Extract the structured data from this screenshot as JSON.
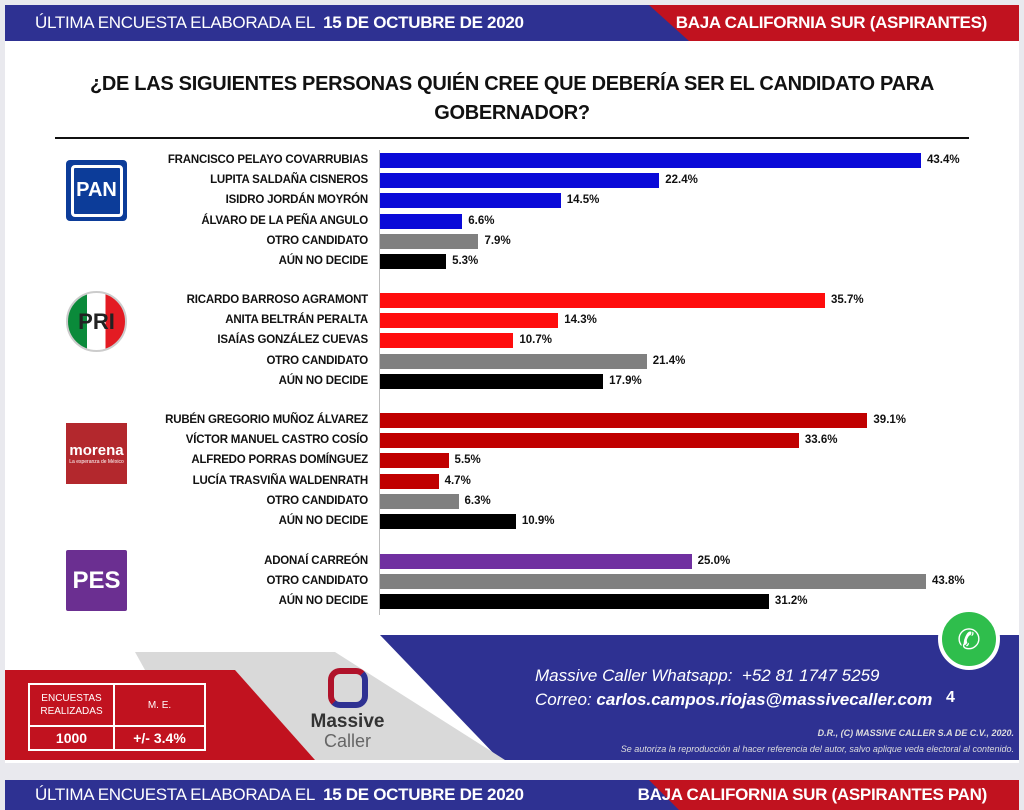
{
  "header": {
    "date_prefix": "ÚLTIMA ENCUESTA ELABORADA EL",
    "date": "15 DE OCTUBRE DE 2020",
    "region": "BAJA CALIFORNIA SUR (ASPIRANTES)"
  },
  "footer_bar": {
    "date_prefix": "ÚLTIMA ENCUESTA ELABORADA EL",
    "date": "15 DE OCTUBRE DE 2020",
    "region": "BAJA CALIFORNIA SUR (ASPIRANTES PAN)"
  },
  "logos": {
    "pan": "PAN",
    "pri": "PRI",
    "morena": "morena",
    "morena_tagline": "La esperanza de México",
    "pes": "PES"
  },
  "colors": {
    "pan": "#0a0ad8",
    "pri": "#ff0d0d",
    "morena": "#c00000",
    "pes": "#7030a0",
    "otro": "#808080",
    "no_decide": "#000000"
  },
  "chart_data": {
    "type": "bar",
    "orientation": "horizontal",
    "title": "¿DE LAS SIGUIENTES PERSONAS QUIÉN CREE QUE DEBERÍA SER EL CANDIDATO PARA GOBERNADOR?",
    "unit": "%",
    "xlim": [
      0,
      45
    ],
    "groups": [
      {
        "party": "pan",
        "items": [
          {
            "label": "FRANCISCO PELAYO COVARRUBIAS",
            "value": 43.4,
            "display": "43.4%",
            "color": "pan"
          },
          {
            "label": "LUPITA SALDAÑA CISNEROS",
            "value": 22.4,
            "display": "22.4%",
            "color": "pan"
          },
          {
            "label": "ISIDRO JORDÁN MOYRÓN",
            "value": 14.5,
            "display": "14.5%",
            "color": "pan"
          },
          {
            "label": "ÁLVARO DE LA PEÑA ANGULO",
            "value": 6.6,
            "display": "6.6%",
            "color": "pan"
          },
          {
            "label": "OTRO CANDIDATO",
            "value": 7.9,
            "display": "7.9%",
            "color": "otro"
          },
          {
            "label": "AÚN NO DECIDE",
            "value": 5.3,
            "display": "5.3%",
            "color": "no_decide"
          }
        ]
      },
      {
        "party": "pri",
        "items": [
          {
            "label": "RICARDO BARROSO AGRAMONT",
            "value": 35.7,
            "display": "35.7%",
            "color": "pri"
          },
          {
            "label": "ANITA BELTRÁN PERALTA",
            "value": 14.3,
            "display": "14.3%",
            "color": "pri"
          },
          {
            "label": "ISAÍAS GONZÁLEZ CUEVAS",
            "value": 10.7,
            "display": "10.7%",
            "color": "pri"
          },
          {
            "label": "OTRO CANDIDATO",
            "value": 21.4,
            "display": "21.4%",
            "color": "otro"
          },
          {
            "label": "AÚN NO DECIDE",
            "value": 17.9,
            "display": "17.9%",
            "color": "no_decide"
          }
        ]
      },
      {
        "party": "morena",
        "items": [
          {
            "label": "RUBÉN GREGORIO MUÑOZ ÁLVAREZ",
            "value": 39.1,
            "display": "39.1%",
            "color": "morena"
          },
          {
            "label": "VÍCTOR MANUEL CASTRO COSÍO",
            "value": 33.6,
            "display": "33.6%",
            "color": "morena"
          },
          {
            "label": "ALFREDO PORRAS DOMÍNGUEZ",
            "value": 5.5,
            "display": "5.5%",
            "color": "morena"
          },
          {
            "label": "LUCÍA TRASVIÑA WALDENRATH",
            "value": 4.7,
            "display": "4.7%",
            "color": "morena"
          },
          {
            "label": "OTRO CANDIDATO",
            "value": 6.3,
            "display": "6.3%",
            "color": "otro"
          },
          {
            "label": "AÚN NO DECIDE",
            "value": 10.9,
            "display": "10.9%",
            "color": "no_decide"
          }
        ]
      },
      {
        "party": "pes",
        "items": [
          {
            "label": "ADONAÍ CARREÓN",
            "value": 25.0,
            "display": "25.0%",
            "color": "pes"
          },
          {
            "label": "OTRO CANDIDATO",
            "value": 43.8,
            "display": "43.8%",
            "color": "otro"
          },
          {
            "label": "AÚN NO DECIDE",
            "value": 31.2,
            "display": "31.2%",
            "color": "no_decide"
          }
        ]
      }
    ]
  },
  "survey": {
    "h1": "ENCUESTAS REALIZADAS",
    "h2": "M. E.",
    "count": "1000",
    "margin": "+/- 3.4%"
  },
  "brand": {
    "name1": "Massive",
    "name2": "Caller"
  },
  "contact": {
    "whatsapp_label": "Massive Caller Whatsapp:",
    "whatsapp": "+52 81 1747 5259",
    "email_label": "Correo:",
    "email": "carlos.campos.riojas@massivecaller.com",
    "page": "4"
  },
  "copyright": {
    "line1": "D.R., (C) MASSIVE CALLER S.A DE C.V., 2020.",
    "line2": "Se autoriza la reproducción al hacer referencia del autor, salvo aplique veda electoral al contenido."
  }
}
